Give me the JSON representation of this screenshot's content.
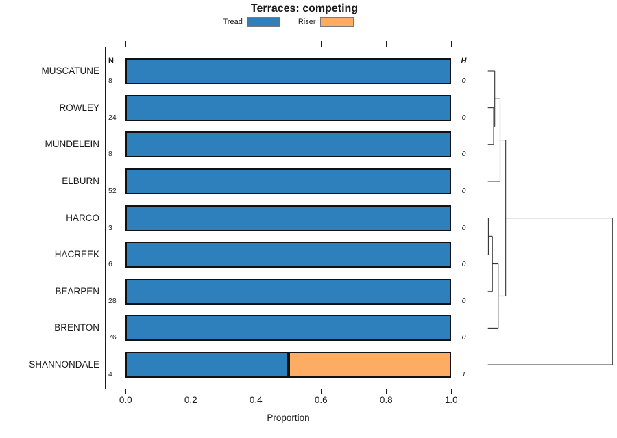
{
  "title": "Terraces: competing",
  "legend": [
    {
      "label": "Tread",
      "color": "#2E80BC"
    },
    {
      "label": "Riser",
      "color": "#FCAD63"
    }
  ],
  "columns": {
    "n_header": "N",
    "h_header": "H"
  },
  "x_axis": {
    "label": "Proportion",
    "tick_labels": [
      "0.0",
      "0.2",
      "0.4",
      "0.6",
      "0.8",
      "1.0"
    ],
    "tick_values": [
      0,
      0.2,
      0.4,
      0.6,
      0.8,
      1.0
    ]
  },
  "colors": {
    "tread": "#2E80BC",
    "riser": "#FCAD63",
    "bar_border": "#111111",
    "box_border": "#1a1a1a",
    "dendro_line": "#333333"
  },
  "chart_data": {
    "type": "bar",
    "stacked": true,
    "orientation": "horizontal",
    "title": "Terraces: competing",
    "xlabel": "Proportion",
    "xlim": [
      0,
      1
    ],
    "grid": false,
    "legend_position": "top",
    "series_names": [
      "Tread",
      "Riser"
    ],
    "rows": [
      {
        "label": "MUSCATUNE",
        "n": 8,
        "h": 0,
        "values": [
          1.0,
          0.0
        ]
      },
      {
        "label": "ROWLEY",
        "n": 24,
        "h": 0,
        "values": [
          1.0,
          0.0
        ]
      },
      {
        "label": "MUNDELEIN",
        "n": 8,
        "h": 0,
        "values": [
          1.0,
          0.0
        ]
      },
      {
        "label": "ELBURN",
        "n": 52,
        "h": 0,
        "values": [
          1.0,
          0.0
        ]
      },
      {
        "label": "HARCO",
        "n": 3,
        "h": 0,
        "values": [
          1.0,
          0.0
        ]
      },
      {
        "label": "HACREEK",
        "n": 6,
        "h": 0,
        "values": [
          1.0,
          0.0
        ]
      },
      {
        "label": "BEARPEN",
        "n": 28,
        "h": 0,
        "values": [
          1.0,
          0.0
        ]
      },
      {
        "label": "BRENTON",
        "n": 76,
        "h": 0,
        "values": [
          1.0,
          0.0
        ]
      },
      {
        "label": "SHANNONDALE",
        "n": 4,
        "h": 1,
        "values": [
          0.5,
          0.5
        ]
      }
    ],
    "dendrogram": {
      "leaf_order": [
        "MUSCATUNE",
        "ROWLEY",
        "MUNDELEIN",
        "ELBURN",
        "HARCO",
        "HACREEK",
        "BEARPEN",
        "BRENTON",
        "SHANNONDALE"
      ],
      "merges": [
        {
          "id": "A",
          "children": [
            "ROWLEY",
            "MUNDELEIN"
          ],
          "height": 0.046
        },
        {
          "id": "B",
          "children": [
            "MUSCATUNE",
            "A"
          ],
          "height": 0.055
        },
        {
          "id": "C",
          "children": [
            "B",
            "ELBURN"
          ],
          "height": 0.098
        },
        {
          "id": "F",
          "children": [
            "HARCO",
            "HACREEK"
          ],
          "height": 0.004
        },
        {
          "id": "G",
          "children": [
            "F",
            "BEARPEN"
          ],
          "height": 0.036
        },
        {
          "id": "H2",
          "children": [
            "G",
            "BRENTON"
          ],
          "height": 0.083
        },
        {
          "id": "I",
          "children": [
            "C",
            "H2"
          ],
          "height": 0.143
        },
        {
          "id": "ROOT",
          "children": [
            "I",
            "SHANNONDALE"
          ],
          "height": 1.0
        }
      ]
    }
  }
}
